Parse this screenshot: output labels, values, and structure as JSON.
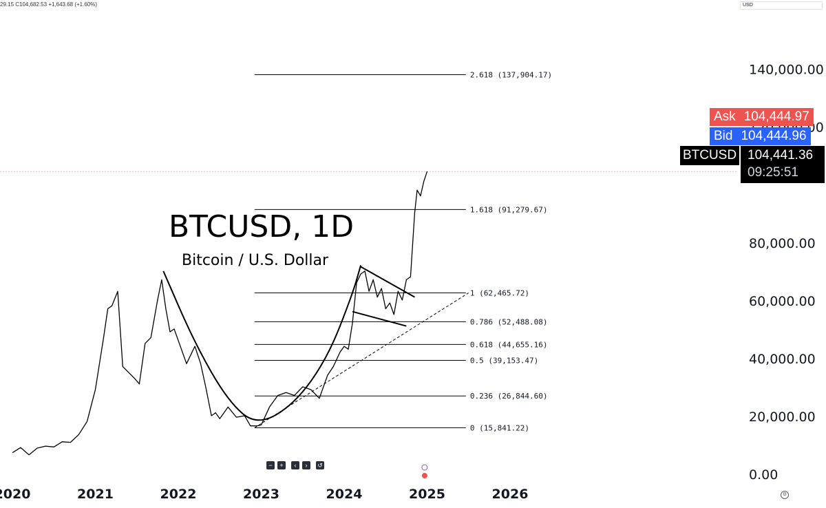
{
  "legend_top": "29.15 C104,682.53 +1,643.68 (+1.60%)",
  "currency": "USD",
  "ask": {
    "label": "Ask",
    "value": "104,444.97",
    "color": "#ef5350"
  },
  "bid": {
    "label": "Bid",
    "value": "104,444.96",
    "color": "#2962ff"
  },
  "symbol": {
    "name": "BTCUSD",
    "price": "104,441.36",
    "timer": "09:25:51"
  },
  "controls": [
    "−",
    "+",
    "‹",
    "›",
    "↺"
  ],
  "chart_data": {
    "type": "line",
    "title": "BTCUSD, 1D",
    "subtitle": "Bitcoin / U.S. Dollar",
    "y_ticks": [
      "140,000.00",
      "120,000.00",
      "80,000.00",
      "60,000.00",
      "40,000.00",
      "20,000.00",
      "0.00"
    ],
    "y_tick_values": [
      140000,
      120000,
      80000,
      60000,
      40000,
      20000,
      0
    ],
    "x_ticks": [
      "2020",
      "2021",
      "2022",
      "2023",
      "2024",
      "2025",
      "2026"
    ],
    "x_tick_values": [
      2020,
      2021,
      2022,
      2023,
      2024,
      2025,
      2026
    ],
    "ylim": [
      0,
      150000
    ],
    "xlim": [
      2020.0,
      2026.7
    ],
    "series": [
      {
        "x": [
          2020.0,
          2020.1,
          2020.2,
          2020.3,
          2020.4,
          2020.5,
          2020.6,
          2020.7,
          2020.8,
          2020.9,
          2021.0,
          2021.05,
          2021.1,
          2021.15,
          2021.2,
          2021.27,
          2021.33,
          2021.4,
          2021.47,
          2021.53,
          2021.6,
          2021.67,
          2021.75,
          2021.8,
          2021.85,
          2021.9,
          2021.95,
          2022.0,
          2022.1,
          2022.2,
          2022.27,
          2022.33,
          2022.4,
          2022.45,
          2022.5,
          2022.6,
          2022.7,
          2022.8,
          2022.87,
          2022.95,
          2023.0,
          2023.1,
          2023.2,
          2023.3,
          2023.4,
          2023.5,
          2023.6,
          2023.7,
          2023.8,
          2023.87,
          2023.95,
          2024.0,
          2024.05,
          2024.1,
          2024.15,
          2024.2,
          2024.25,
          2024.3,
          2024.35,
          2024.4,
          2024.45,
          2024.5,
          2024.55,
          2024.6,
          2024.65,
          2024.7,
          2024.75,
          2024.8,
          2024.85,
          2024.88,
          2024.92,
          2024.96,
          2025.0
        ],
        "y": [
          7200,
          9000,
          6500,
          8800,
          9500,
          9200,
          11000,
          10800,
          13500,
          18000,
          29000,
          38000,
          47000,
          57000,
          58000,
          63000,
          37000,
          35000,
          33000,
          31000,
          45000,
          47000,
          60000,
          67000,
          57000,
          49000,
          50000,
          46000,
          38000,
          44000,
          38000,
          30000,
          20000,
          21000,
          19000,
          23000,
          19500,
          20000,
          16500,
          16500,
          16800,
          23000,
          27000,
          28000,
          27000,
          30000,
          29000,
          26000,
          34000,
          37000,
          42000,
          44000,
          43000,
          52000,
          66000,
          69000,
          70000,
          63000,
          67000,
          61000,
          64000,
          57000,
          59000,
          55000,
          63000,
          60000,
          67000,
          68000,
          90000,
          98000,
          96000,
          101000,
          104441
        ]
      }
    ],
    "fib_levels": [
      {
        "ratio": "2.618",
        "value": 137904.17,
        "label": "2.618 (137,904.17)"
      },
      {
        "ratio": "1.618",
        "value": 91279.67,
        "label": "1.618 (91,279.67)"
      },
      {
        "ratio": "1",
        "value": 62465.72,
        "label": "1 (62,465.72)"
      },
      {
        "ratio": "0.786",
        "value": 52488.08,
        "label": "0.786 (52,488.08)"
      },
      {
        "ratio": "0.618",
        "value": 44655.16,
        "label": "0.618 (44,655.16)"
      },
      {
        "ratio": "0.5",
        "value": 39153.47,
        "label": "0.5 (39,153.47)"
      },
      {
        "ratio": "0.236",
        "value": 26844.6,
        "label": "0.236 (26,844.60)"
      },
      {
        "ratio": "0",
        "value": 15841.22,
        "label": "0 (15,841.22)"
      }
    ],
    "fib_x_start": 2022.92,
    "fib_x_end": 2025.5,
    "last_price": 104441.36,
    "annotations": {
      "cup_left": [
        [
          2021.82,
          70000
        ],
        [
          2022.2,
          45000
        ],
        [
          2022.6,
          25000
        ],
        [
          2022.95,
          16500
        ],
        [
          2023.4,
          24000
        ],
        [
          2023.8,
          40000
        ],
        [
          2024.1,
          62000
        ],
        [
          2024.2,
          72000
        ]
      ],
      "flag_upper": [
        [
          2024.2,
          71500
        ],
        [
          2024.85,
          61000
        ]
      ],
      "flag_lower": [
        [
          2024.1,
          56000
        ],
        [
          2024.75,
          51000
        ]
      ],
      "trend_dashed": [
        [
          2022.92,
          15841
        ],
        [
          2025.5,
          62465
        ]
      ]
    },
    "grid": false,
    "line_color": "#000000"
  }
}
